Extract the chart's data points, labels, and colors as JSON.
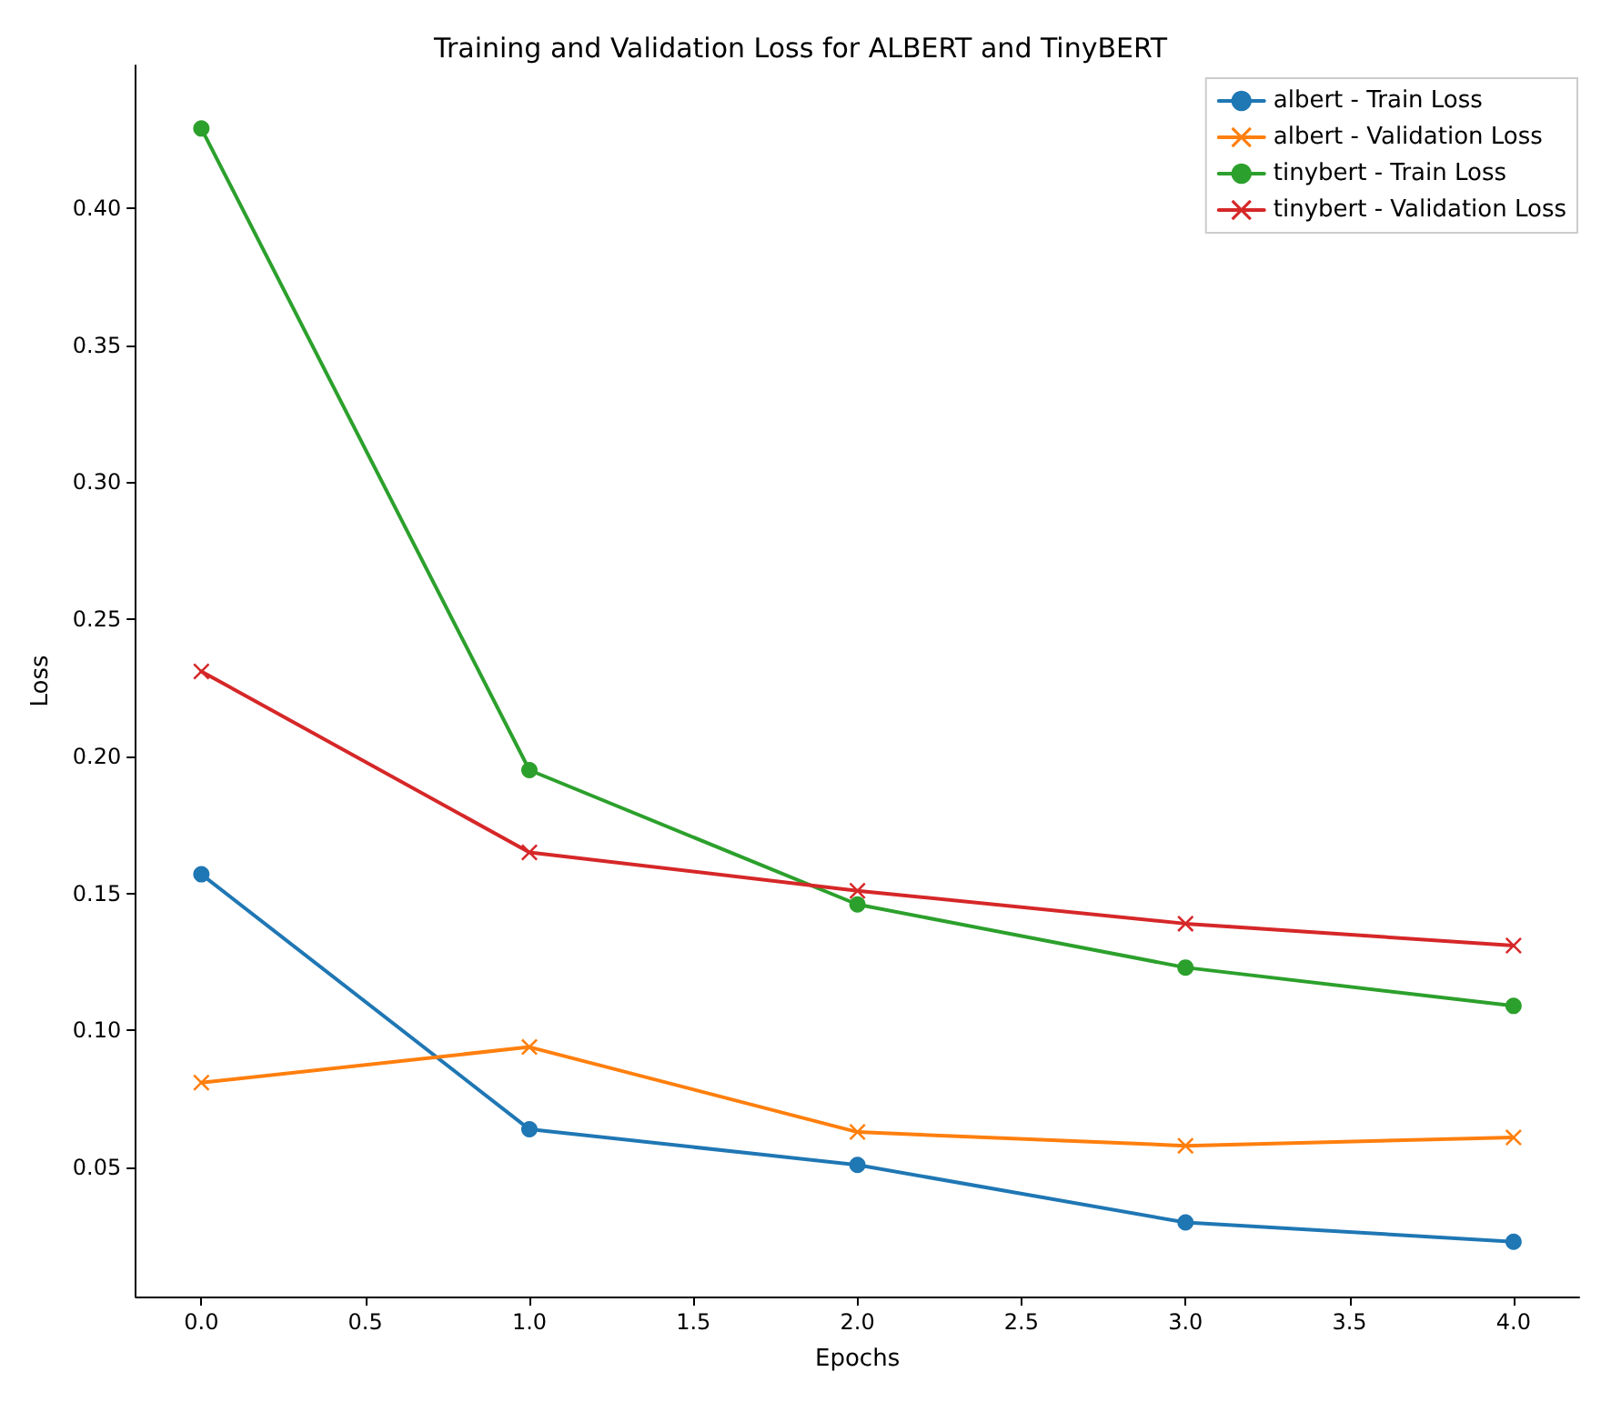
{
  "chart_data": {
    "type": "line",
    "title": "Training and Validation Loss for ALBERT and TinyBERT",
    "xlabel": "Epochs",
    "ylabel": "Loss",
    "x": [
      0,
      1,
      2,
      3,
      4
    ],
    "series": [
      {
        "name": "albert - Train Loss",
        "color": "#1f77b4",
        "marker": "circle",
        "values": [
          0.157,
          0.064,
          0.051,
          0.03,
          0.023
        ]
      },
      {
        "name": "albert - Validation Loss",
        "color": "#ff7f0e",
        "marker": "cross",
        "values": [
          0.081,
          0.094,
          0.063,
          0.058,
          0.061
        ]
      },
      {
        "name": "tinybert - Train Loss",
        "color": "#2ca02c",
        "marker": "circle",
        "values": [
          0.429,
          0.195,
          0.146,
          0.123,
          0.109
        ]
      },
      {
        "name": "tinybert - Validation Loss",
        "color": "#d62728",
        "marker": "cross",
        "values": [
          0.231,
          0.165,
          0.151,
          0.139,
          0.131
        ]
      }
    ],
    "xlim": [
      -0.2,
      4.2
    ],
    "xticks": [
      {
        "value": 0,
        "label": "0.0"
      },
      {
        "value": 0.5,
        "label": "0.5"
      },
      {
        "value": 1,
        "label": "1.0"
      },
      {
        "value": 1.5,
        "label": "1.5"
      },
      {
        "value": 2,
        "label": "2.0"
      },
      {
        "value": 2.5,
        "label": "2.5"
      },
      {
        "value": 3,
        "label": "3.0"
      },
      {
        "value": 3.5,
        "label": "3.5"
      },
      {
        "value": 4,
        "label": "4.0"
      }
    ],
    "ylim": [
      0.003,
      0.452
    ],
    "yticks": [
      0.05,
      {
        "value": 0.1,
        "label": "0.10"
      },
      0.15,
      {
        "value": 0.2,
        "label": "0.20"
      },
      0.25,
      {
        "value": 0.3,
        "label": "0.30"
      },
      0.35,
      {
        "value": 0.4,
        "label": "0.40"
      }
    ],
    "grid": false,
    "legend": "top right",
    "line_style": "solid"
  }
}
